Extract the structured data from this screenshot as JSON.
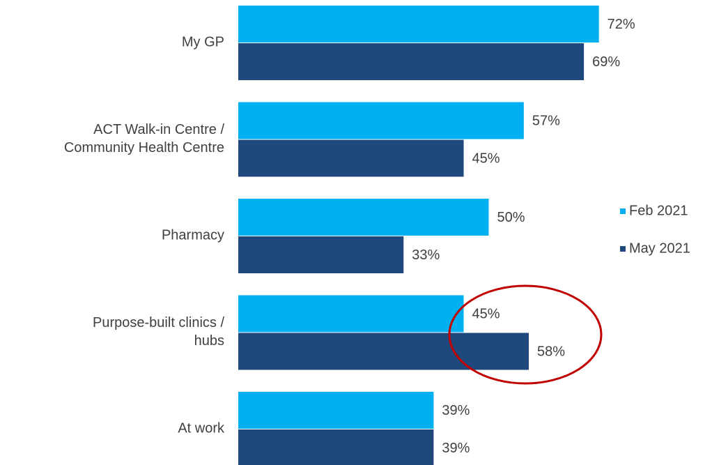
{
  "chart_data": {
    "type": "bar",
    "orientation": "horizontal",
    "categories": [
      "My GP",
      "ACT Walk-in Centre /\nCommunity Health Centre",
      "Pharmacy",
      "Purpose-built clinics /\nhubs",
      "At work"
    ],
    "series": [
      {
        "name": "Feb 2021",
        "color": "#00b0f0",
        "values": [
          72,
          57,
          50,
          45,
          39
        ],
        "value_labels": [
          "72%",
          "57%",
          "50%",
          "45%",
          "39%"
        ]
      },
      {
        "name": "May 2021",
        "color": "#1f497d",
        "values": [
          69,
          45,
          33,
          58,
          39
        ],
        "value_labels": [
          "69%",
          "45%",
          "33%",
          "58%",
          "39%"
        ]
      }
    ],
    "legend": "right"
  }
}
